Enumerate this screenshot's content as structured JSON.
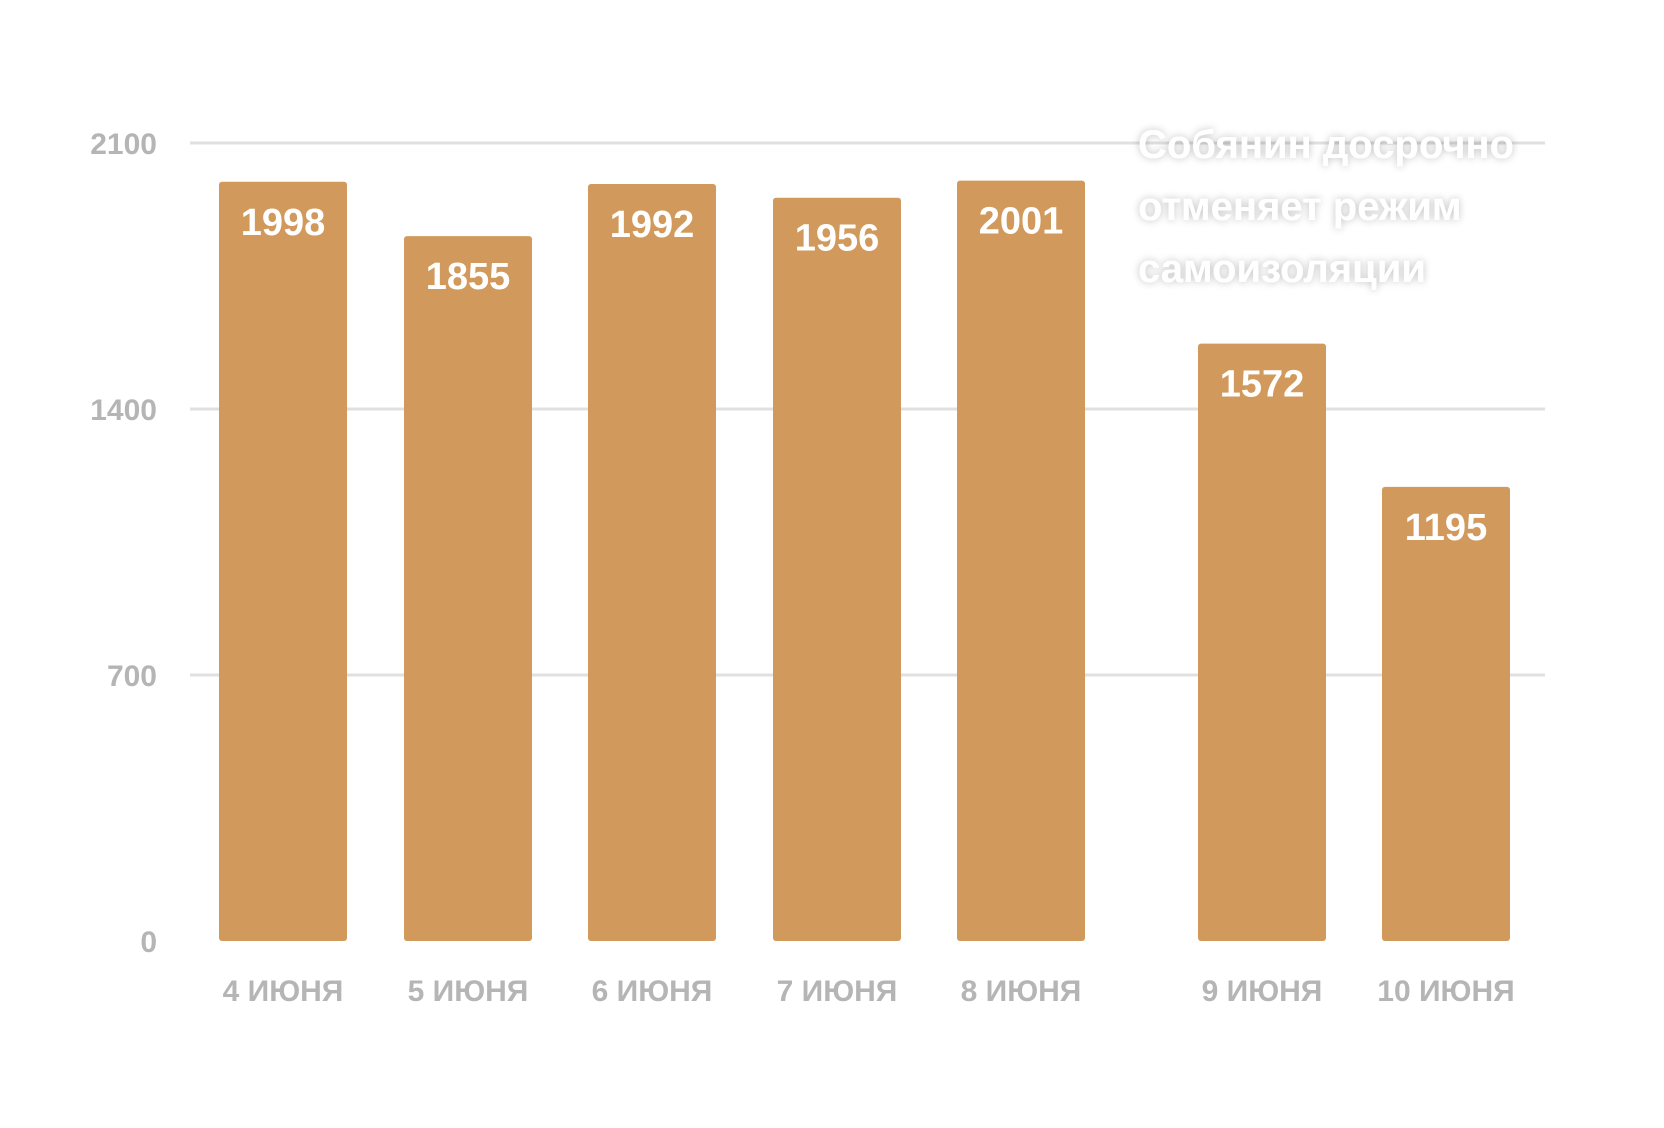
{
  "chart_data": {
    "type": "bar",
    "categories": [
      "4 ИЮНЯ",
      "5 ИЮНЯ",
      "6 ИЮНЯ",
      "7 ИЮНЯ",
      "8 ИЮНЯ",
      "9 ИЮНЯ",
      "10 ИЮНЯ"
    ],
    "values": [
      1998,
      1855,
      1992,
      1956,
      2001,
      1572,
      1195
    ],
    "data_labels": [
      "1998",
      "1855",
      "1992",
      "1956",
      "2001",
      "1572",
      "1195"
    ],
    "yticks": [
      0,
      700,
      1400,
      2100
    ],
    "ytick_labels": [
      "0",
      "700",
      "1400",
      "2100"
    ],
    "ylim": [
      0,
      2100
    ],
    "grid": true,
    "title": "",
    "xlabel": "",
    "ylabel": "",
    "annotation": {
      "lines": [
        "Собянин досрочно",
        "отменяет режим",
        "самоизоляции"
      ]
    },
    "colors": {
      "bar": "#D1995C",
      "grid": "#e0e0e0",
      "tick": "#b5b5b5",
      "label": "#ffffff"
    }
  }
}
